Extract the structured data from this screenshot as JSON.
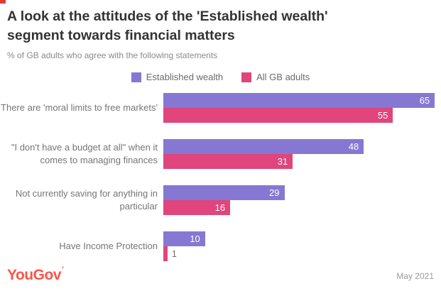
{
  "header": {
    "title_line1": "A look at the attitudes of the 'Established wealth'",
    "title_line2": "segment towards financial matters",
    "subtitle": "% of GB adults who agree with the following statements"
  },
  "chart_data": {
    "type": "bar",
    "orientation": "horizontal",
    "title": "A look at the attitudes of the 'Established wealth' segment towards financial matters",
    "subtitle": "% of GB adults who agree with the following statements",
    "categories": [
      "There are 'moral limits to free markets'",
      "\"I don't have a budget at all\" when it comes to managing finances",
      "Not currently saving for anything in particular",
      "Have Income Protection"
    ],
    "series": [
      {
        "name": "Established wealth",
        "color": "#8678d2",
        "values": [
          65,
          48,
          29,
          10
        ]
      },
      {
        "name": "All GB adults",
        "color": "#e0457c",
        "values": [
          55,
          31,
          16,
          1
        ]
      }
    ],
    "xlim": [
      0,
      66.5
    ],
    "grid": false,
    "legend_position": "top-center",
    "value_labels": "inside bar end in white; outside in grey when bar too small"
  },
  "colors": {
    "established_wealth": "#8678d2",
    "all_gb_adults": "#e0457c",
    "title_text": "#333333",
    "brand_red": "#fa554a"
  },
  "footer": {
    "logo_text": "YouGov",
    "date": "May 2021"
  }
}
